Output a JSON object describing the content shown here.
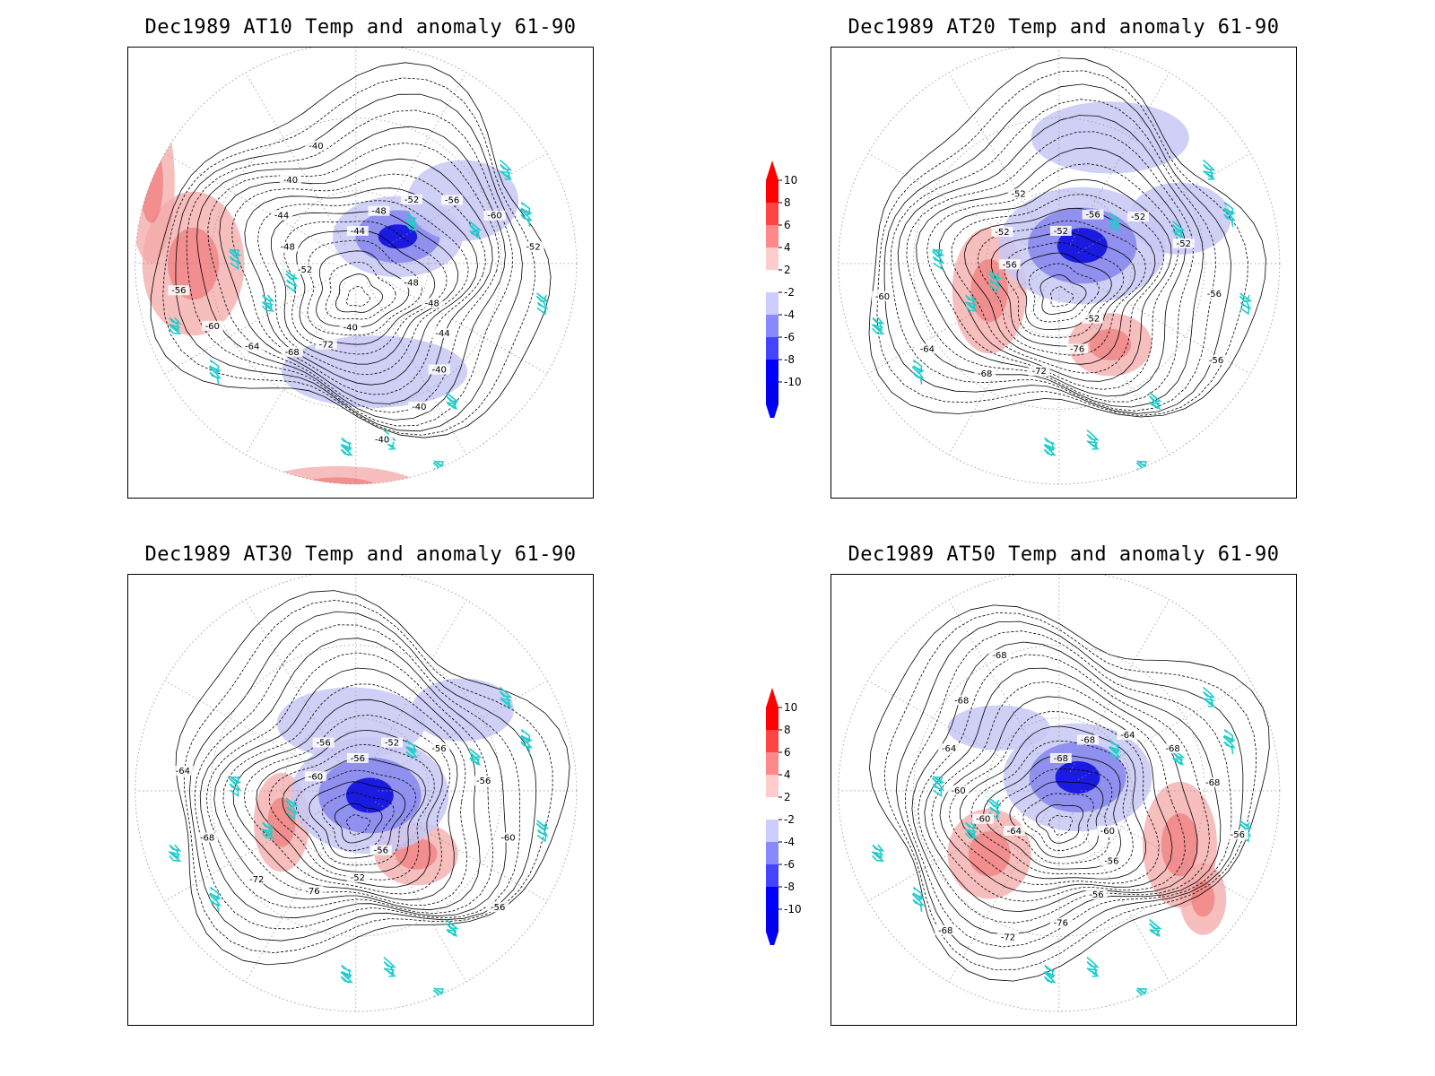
{
  "panels": [
    {
      "title": "Dec1989 AT10 Temp and anomaly 61-90",
      "contour_labels": [
        "-44",
        "-48",
        "-52",
        "-56",
        "-60",
        "-52",
        "-48",
        "-48",
        "-44",
        "-40",
        "-40",
        "-40",
        "-40",
        "-72",
        "-68",
        "-64",
        "-60",
        "-56",
        "-52",
        "-48",
        "-44",
        "-40",
        "-40"
      ],
      "warm_regions": [
        [
          0.14,
          0.48,
          0.11,
          0.16
        ],
        [
          0.05,
          0.3,
          0.05,
          0.18
        ],
        [
          0.45,
          0.98,
          0.18,
          0.05
        ]
      ],
      "cold_regions": [
        [
          0.58,
          0.42,
          0.14,
          0.09
        ],
        [
          0.72,
          0.34,
          0.12,
          0.09
        ],
        [
          0.53,
          0.72,
          0.2,
          0.08
        ]
      ]
    },
    {
      "title": "Dec1989 AT20 Temp and anomaly 61-90",
      "contour_labels": [
        "-52",
        "-56",
        "-52",
        "-52",
        "-56",
        "-56",
        "-52",
        "-76",
        "-72",
        "-68",
        "-64",
        "-60",
        "-56",
        "-52",
        "-52"
      ],
      "warm_regions": [
        [
          0.34,
          0.54,
          0.08,
          0.14
        ],
        [
          0.6,
          0.66,
          0.09,
          0.07
        ]
      ],
      "cold_regions": [
        [
          0.54,
          0.44,
          0.18,
          0.13
        ],
        [
          0.6,
          0.2,
          0.17,
          0.08
        ],
        [
          0.75,
          0.38,
          0.11,
          0.08
        ]
      ]
    },
    {
      "title": "Dec1989 AT30 Temp and anomaly 61-90",
      "contour_labels": [
        "-56",
        "-52",
        "-56",
        "-56",
        "-60",
        "-56",
        "-56",
        "-52",
        "-76",
        "-72",
        "-68",
        "-64",
        "-60",
        "-56"
      ],
      "warm_regions": [
        [
          0.33,
          0.55,
          0.06,
          0.11
        ],
        [
          0.62,
          0.62,
          0.09,
          0.07
        ]
      ],
      "cold_regions": [
        [
          0.52,
          0.49,
          0.17,
          0.13
        ],
        [
          0.48,
          0.33,
          0.16,
          0.08
        ],
        [
          0.72,
          0.3,
          0.11,
          0.07
        ]
      ]
    },
    {
      "title": "Dec1989 AT50 Temp and anomaly 61-90",
      "contour_labels": [
        "-68",
        "-68",
        "-64",
        "-68",
        "-68",
        "-56",
        "-60",
        "-56",
        "-56",
        "-76",
        "-72",
        "-68",
        "-64",
        "-60",
        "-60",
        "-64",
        "-68",
        "-68"
      ],
      "warm_regions": [
        [
          0.34,
          0.62,
          0.09,
          0.1
        ],
        [
          0.75,
          0.6,
          0.08,
          0.14
        ],
        [
          0.8,
          0.72,
          0.05,
          0.08
        ]
      ],
      "cold_regions": [
        [
          0.53,
          0.45,
          0.16,
          0.12
        ],
        [
          0.36,
          0.34,
          0.11,
          0.05
        ]
      ]
    }
  ],
  "colorbar": {
    "levels": [
      "10",
      "8",
      "6",
      "4",
      "2",
      "-2",
      "-4",
      "-6",
      "-8",
      "-10"
    ],
    "colors": [
      "#ff0000",
      "#ff4444",
      "#ff8888",
      "#ffcccc",
      "#ffffff",
      "#ccccff",
      "#8888ff",
      "#4444ff",
      "#0000ff",
      "#0000ee"
    ],
    "top_arrow_color": "#ff0000",
    "bottom_arrow_color": "#0000ff"
  },
  "coastline_color": "#22cccc",
  "contour_color": "#000000"
}
